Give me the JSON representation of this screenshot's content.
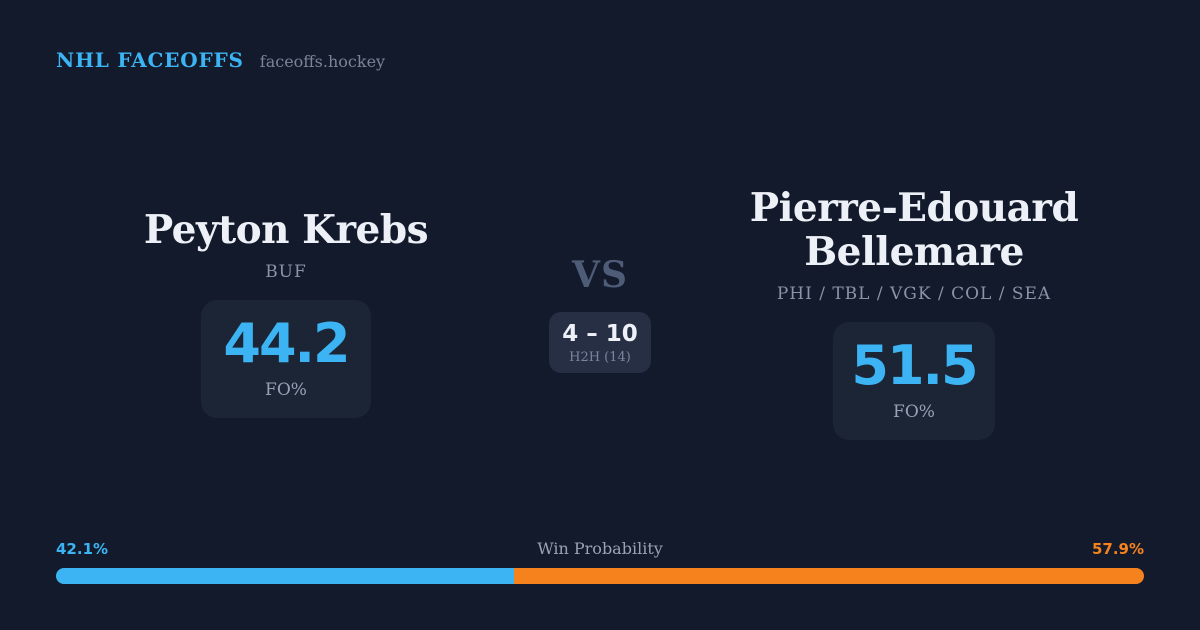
{
  "header": {
    "brand": "NHL FACEOFFS",
    "site": "faceoffs.hockey"
  },
  "players": {
    "left": {
      "name": "Peyton Krebs",
      "teams": "BUF",
      "fo_value": "44.2",
      "fo_label": "FO%"
    },
    "right": {
      "name": "Pierre-Edouard Bellemare",
      "teams": "PHI / TBL / VGK / COL / SEA",
      "fo_value": "51.5",
      "fo_label": "FO%"
    }
  },
  "center": {
    "vs_label": "VS",
    "h2h_score": "4 – 10",
    "h2h_label": "H2H (14)"
  },
  "win_probability": {
    "title": "Win Probability",
    "left_label": "42.1%",
    "right_label": "57.9%",
    "left_value": 42.1,
    "right_value": 57.9
  },
  "colors": {
    "background": "#121a2b",
    "accent_blue": "#3cb4f4",
    "accent_orange": "#f5821d",
    "box_bg": "#1c2535",
    "h2h_bg": "#272f44",
    "text_white": "#edf1f7",
    "text_gray": "#8b94a6",
    "text_slate": "#4e5c77"
  }
}
